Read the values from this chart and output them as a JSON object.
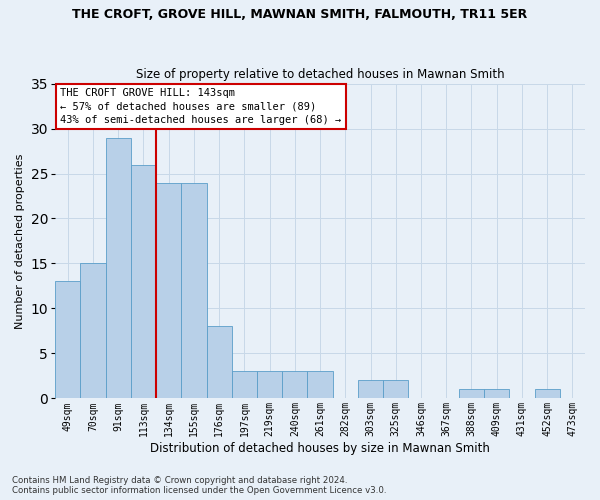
{
  "title": "THE CROFT, GROVE HILL, MAWNAN SMITH, FALMOUTH, TR11 5ER",
  "subtitle": "Size of property relative to detached houses in Mawnan Smith",
  "xlabel": "Distribution of detached houses by size in Mawnan Smith",
  "ylabel": "Number of detached properties",
  "footnote1": "Contains HM Land Registry data © Crown copyright and database right 2024.",
  "footnote2": "Contains public sector information licensed under the Open Government Licence v3.0.",
  "bin_labels": [
    "49sqm",
    "70sqm",
    "91sqm",
    "113sqm",
    "134sqm",
    "155sqm",
    "176sqm",
    "197sqm",
    "219sqm",
    "240sqm",
    "261sqm",
    "282sqm",
    "303sqm",
    "325sqm",
    "346sqm",
    "367sqm",
    "388sqm",
    "409sqm",
    "431sqm",
    "452sqm",
    "473sqm"
  ],
  "bar_values": [
    13,
    15,
    29,
    26,
    24,
    24,
    8,
    3,
    3,
    3,
    3,
    0,
    2,
    2,
    0,
    0,
    1,
    1,
    0,
    1,
    0
  ],
  "bar_color": "#b8d0e8",
  "bar_edge_color": "#5a9ec9",
  "grid_color": "#c8d8e8",
  "background_color": "#e8f0f8",
  "vline_color": "#cc0000",
  "annotation_text": "THE CROFT GROVE HILL: 143sqm\n← 57% of detached houses are smaller (89)\n43% of semi-detached houses are larger (68) →",
  "annotation_box_color": "#ffffff",
  "annotation_border_color": "#cc0000",
  "ylim": [
    0,
    35
  ],
  "yticks": [
    0,
    5,
    10,
    15,
    20,
    25,
    30,
    35
  ]
}
